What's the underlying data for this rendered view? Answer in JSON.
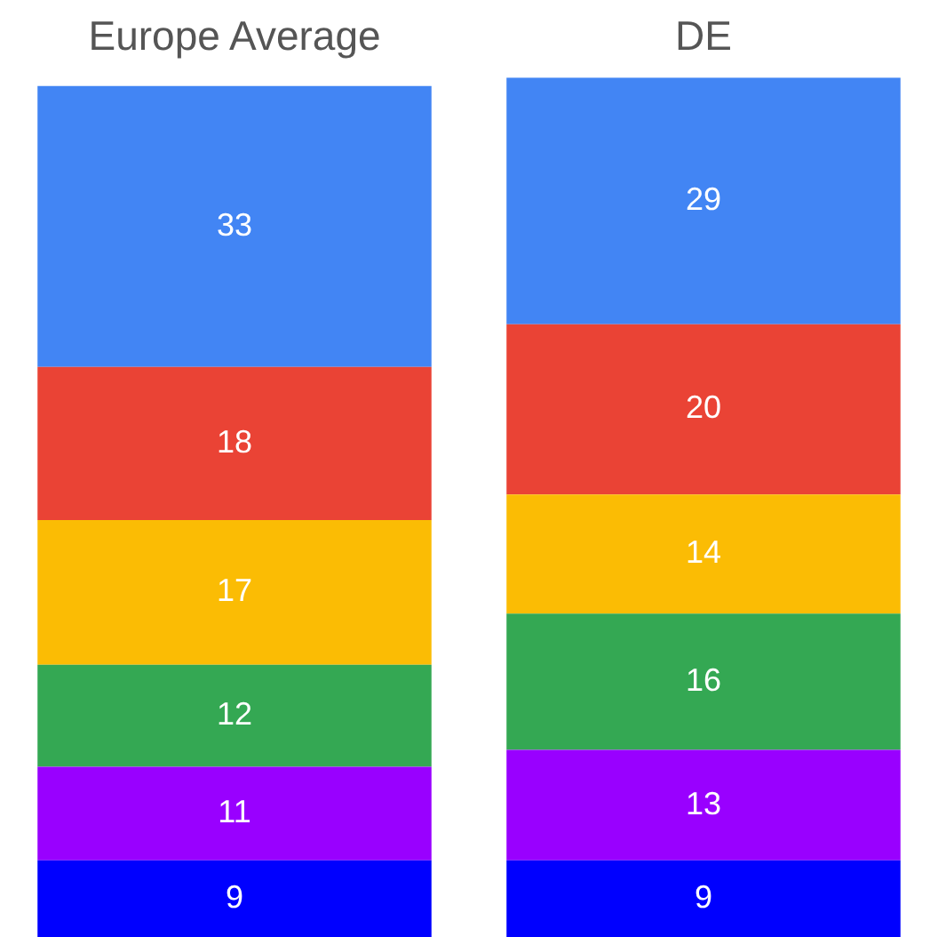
{
  "chart_data": {
    "type": "bar",
    "stacked": true,
    "tick_labels": "x",
    "data_labels": true,
    "legend": false,
    "grid": false,
    "categories": [
      "Europe Average",
      "DE"
    ],
    "series": [
      {
        "color": "#0000ff",
        "values": [
          9,
          9
        ]
      },
      {
        "color": "#9900ff",
        "values": [
          11,
          13
        ]
      },
      {
        "color": "#34a853",
        "values": [
          12,
          16
        ]
      },
      {
        "color": "#fbbc04",
        "values": [
          17,
          14
        ]
      },
      {
        "color": "#ea4335",
        "values": [
          18,
          20
        ]
      },
      {
        "color": "#4285f4",
        "values": [
          33,
          29
        ]
      }
    ]
  }
}
